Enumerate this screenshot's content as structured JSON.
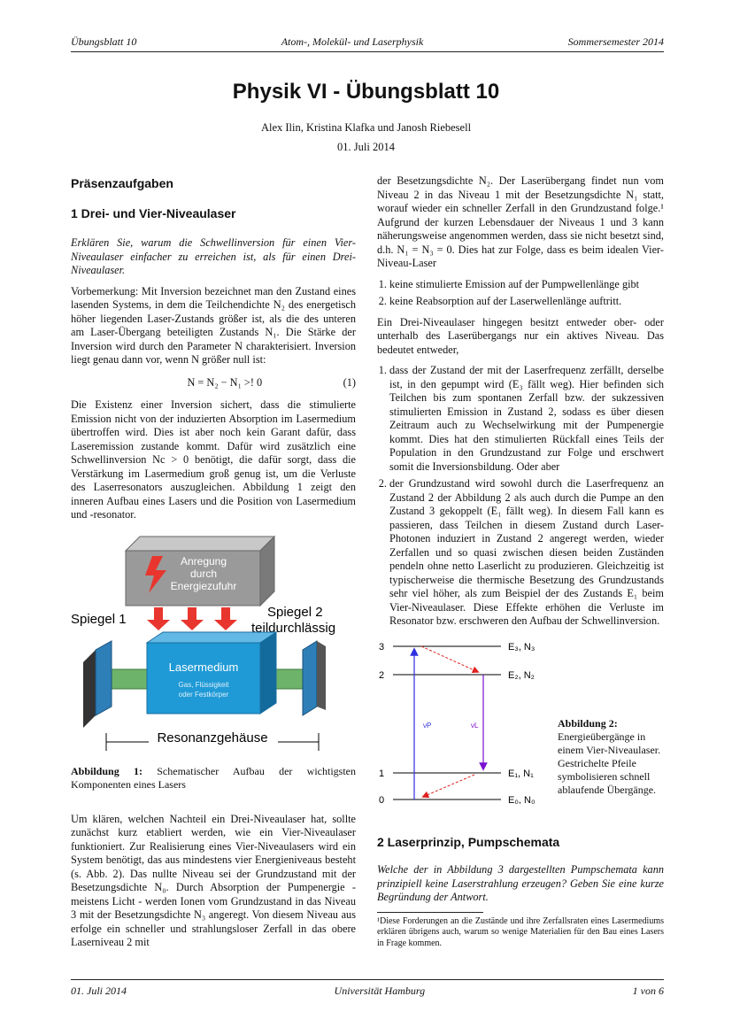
{
  "header": {
    "left": "Übungsblatt 10",
    "center": "Atom-, Molekül- und Laserphysik",
    "right": "Sommersemester 2014"
  },
  "title": "Physik VI - Übungsblatt 10",
  "authors": "Alex Ilin, Kristina Klafka und Janosh Riebesell",
  "date": "01. Juli 2014",
  "left": {
    "section_heading": "Präsenzaufgaben",
    "sub1_heading": "1 Drei- und Vier-Niveaulaser",
    "task": "Erklären Sie, warum die Schwellinversion für einen Vier-Niveaulaser einfacher zu erreichen ist, als für einen Drei-Niveaulaser.",
    "p1": "Vorbemerkung: Mit Inversion bezeichnet man den Zustand eines lasenden Systems, in dem die Teilchendichte N₂ des energetisch höher liegenden Laser-Zustands größer ist, als die des unteren am Laser-Übergang beteiligten Zustands N₁. Die Stärke der Inversion wird durch den Parameter N charakterisiert. Inversion liegt genau dann vor, wenn N größer null ist:",
    "equation": "N = N₂ − N₁ >! 0",
    "equation_number": "(1)",
    "p2": "Die Existenz einer Inversion sichert, dass die stimulierte Emission nicht von der induzierten Absorption im Lasermedium übertroffen wird. Dies ist aber noch kein Garant dafür, dass Laseremission zustande kommt. Dafür wird zusätzlich eine Schwellinversion Nc > 0 benötigt, die dafür sorgt, dass die Verstärkung im Lasermedium groß genug ist, um die Verluste des Laserresonators auszugleichen. Abbildung 1 zeigt den inneren Aufbau eines Lasers und die Position von Lasermedium und -resonator.",
    "figure1": {
      "box_label_1": "Anregung",
      "box_label_2": "durch",
      "box_label_3": "Energiezufuhr",
      "mirror1": "Spiegel 1",
      "mirror2_1": "Spiegel 2",
      "mirror2_2": "teildurchlässig",
      "medium": "Lasermedium",
      "medium_sub1": "Gas, Flüssigkeit",
      "medium_sub2": "oder Festkörper",
      "housing": "Resonanzgehäuse",
      "caption_label": "Abbildung 1:",
      "caption_text": "Schematischer Aufbau der wichtigsten Komponenten eines Lasers"
    },
    "p3": "Um klären, welchen Nachteil ein Drei-Niveaulaser hat, sollte zunächst kurz etabliert werden, wie ein Vier-Niveaulaser funktioniert. Zur Realisierung eines Vier-Niveaulasers wird ein System benötigt, das aus mindestens vier Energieniveaus besteht (s. Abb. 2). Das nullte Niveau sei der Grundzustand mit der Besetzungsdichte N₀. Durch Absorption der Pumpenergie - meistens Licht - werden Ionen vom Grundzustand in das Niveau 3 mit der Besetzungsdichte N₃ angeregt. Von diesem Niveau aus erfolge ein schneller und strahlungsloser Zerfall in das obere Laserniveau 2 mit"
  },
  "right": {
    "p1": "der Besetzungsdichte N₂. Der Laserübergang findet nun vom Niveau 2 in das Niveau 1 mit der Besetzungsdichte N₁ statt, worauf wieder ein schneller Zerfall in den Grundzustand folge.¹ Aufgrund der kurzen Lebensdauer der Niveaus 1 und 3 kann näherungsweise angenommen werden, dass sie nicht besetzt sind, d.h. N₁ = N₃ = 0. Dies hat zur Folge, dass es beim idealen Vier-Niveau-Laser",
    "list1": [
      "keine stimulierte Emission auf der Pumpwellenlänge gibt",
      "keine Reabsorption auf der Laserwellenlänge auftritt."
    ],
    "p2": "Ein Drei-Niveaulaser hingegen besitzt entweder ober- oder unterhalb des Laserübergangs nur ein aktives Niveau. Das bedeutet entweder,",
    "list2": [
      "dass der Zustand der mit der Laserfrequenz zerfällt, derselbe ist, in den gepumpt wird (E₃ fällt weg). Hier befinden sich Teilchen bis zum spontanen Zerfall bzw. der sukzessiven stimulierten Emission in Zustand 2, sodass es über diesen Zeitraum auch zu Wechselwirkung mit der Pumpenergie kommt. Dies hat den stimulierten Rückfall eines Teils der Population in den Grundzustand zur Folge und erschwert somit die Inversionsbildung. Oder aber",
      "der Grundzustand wird sowohl durch die Laserfrequenz an Zustand 2 der Abbildung 2 als auch durch die Pumpe an den Zustand 3 gekoppelt (E₁ fällt weg). In diesem Fall kann es passieren, dass Teilchen in diesem Zustand durch Laser-Photonen induziert in Zustand 2 angeregt werden, wieder Zerfallen und so quasi zwischen diesen beiden Zuständen pendeln ohne netto Laserlicht zu produzieren. Gleichzeitig ist typischerweise die thermische Besetzung des Grundzustands sehr viel höher, als zum Beispiel der des Zustands E₁ beim Vier-Niveaulaser. Diese Effekte erhöhen die Verluste im Resonator bzw. erschweren den Aufbau der Schwellinversion."
    ],
    "figure2": {
      "levels": [
        "3",
        "2",
        "1",
        "0"
      ],
      "level_labels": [
        "E₃, N₃",
        "E₂, N₂",
        "E₁, N₁",
        "E₀, N₀"
      ],
      "pump_label": "νP",
      "laser_label": "νL",
      "caption_label": "Abbildung 2:",
      "caption_text": "Energieübergänge in einem Vier-Niveaulaser. Gestrichelte Pfeile symbolisieren schnell ablaufende Übergänge."
    },
    "sub2_heading": "2 Laserprinzip, Pumpschemata",
    "task2": "Welche der in Abbildung 3 dargestellten Pumpschemata kann prinzipiell keine Laserstrahlung erzeugen? Geben Sie eine kurze Begründung der Antwort.",
    "footnote": "¹Diese Forderungen an die Zustände und ihre Zerfallsraten eines Lasermediums erklären übrigens auch, warum so wenige Materialien für den Bau eines Lasers in Frage kommen."
  },
  "footer": {
    "left": "01. Juli 2014",
    "center": "Universität Hamburg",
    "right": "1 von 6"
  },
  "colors": {
    "housing_gray": "#9a9a9a",
    "medium_blue": "#1f9ad6",
    "arrow_red": "#e8362e",
    "rod_green": "#6db36a",
    "mirror_blue": "#2e7fb8",
    "pump_arrow": "#3030e0",
    "laser_arrow": "#7a10d0",
    "decay_arrow": "#e02020"
  }
}
